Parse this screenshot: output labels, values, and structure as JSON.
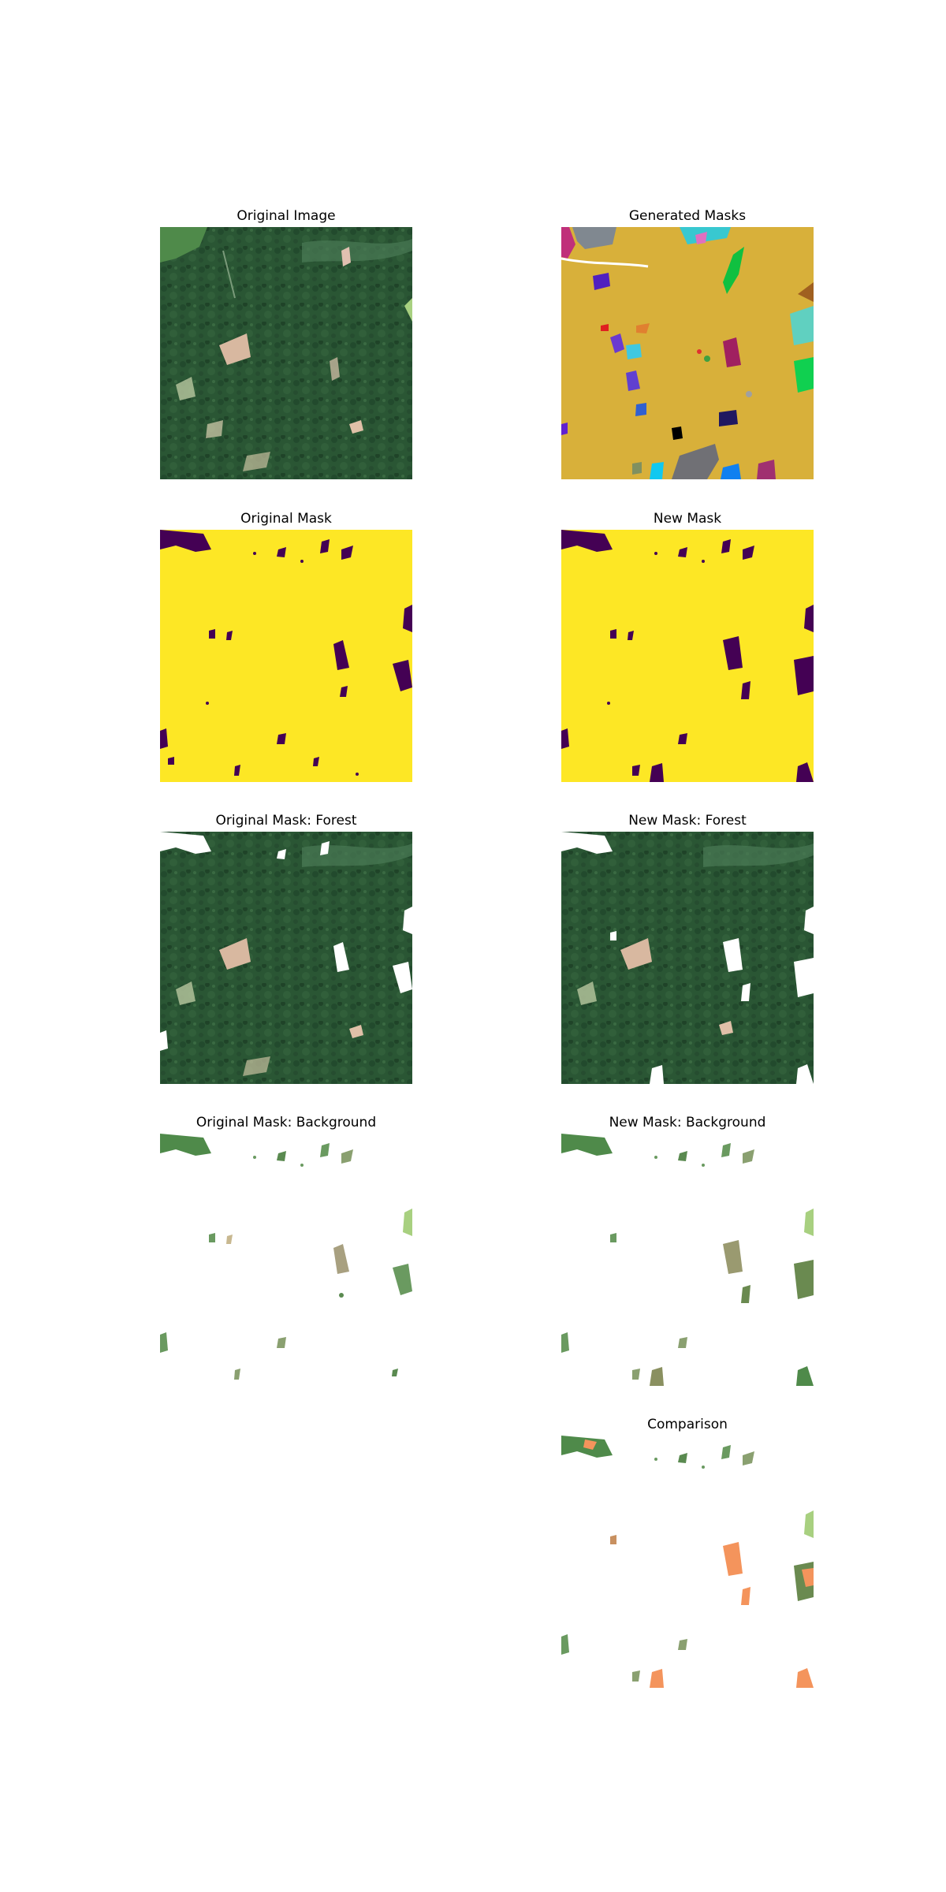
{
  "figure": {
    "panels": [
      {
        "id": "original-image",
        "title": "Original Image"
      },
      {
        "id": "generated-masks",
        "title": "Generated Masks"
      },
      {
        "id": "original-mask",
        "title": "Original Mask"
      },
      {
        "id": "new-mask",
        "title": "New Mask"
      },
      {
        "id": "original-mask-forest",
        "title": "Original Mask: Forest"
      },
      {
        "id": "new-mask-forest",
        "title": "New Mask: Forest"
      },
      {
        "id": "original-mask-background",
        "title": "Original Mask: Background"
      },
      {
        "id": "new-mask-background",
        "title": "New Mask: Background"
      },
      {
        "id": "comparison",
        "title": "Comparison"
      }
    ],
    "colors": {
      "forest_dark": "#234a30",
      "forest_mid": "#2e5d38",
      "clearing": "#d8b8a0",
      "mask_yellow": "#fde725",
      "mask_purple": "#440154",
      "generated_bg": "#d8b03a",
      "comparison_highlight": "#f4945c"
    }
  }
}
